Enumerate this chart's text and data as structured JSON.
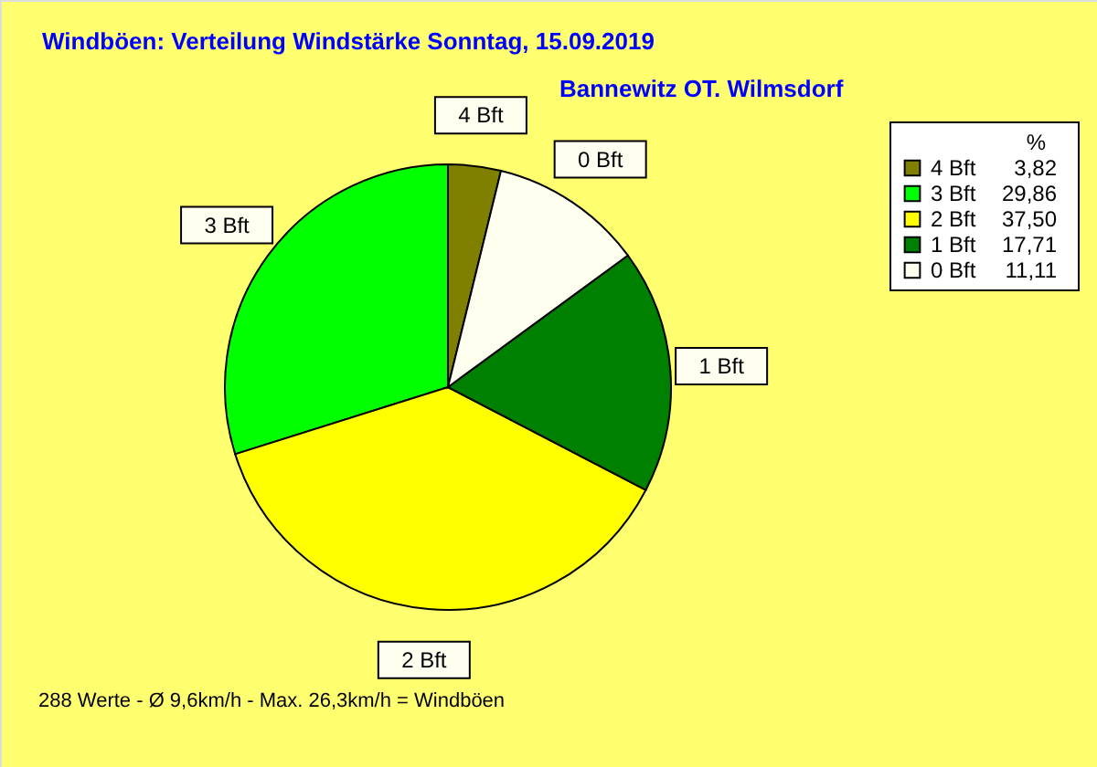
{
  "chart_data": {
    "type": "pie",
    "title": "Windböen: Verteilung Windstärke  Sonntag, 15.09.2019",
    "subtitle": "Bannewitz OT. Wilmsdorf",
    "categories": [
      "4 Bft",
      "3 Bft",
      "2 Bft",
      "1 Bft",
      "0 Bft"
    ],
    "values": [
      3.82,
      29.86,
      37.5,
      17.71,
      11.11
    ],
    "colors": [
      "#808000",
      "#00ff00",
      "#ffff00",
      "#008000",
      "#fffff0"
    ],
    "value_labels": [
      "3,82",
      "29,86",
      "37,50",
      "17,71",
      "11,11"
    ],
    "legend_title": "%",
    "legend": "top right",
    "annotations": [
      "288 Werte   -   Ø 9,6km/h  -  Max. 26,3km/h = Windböen"
    ]
  }
}
